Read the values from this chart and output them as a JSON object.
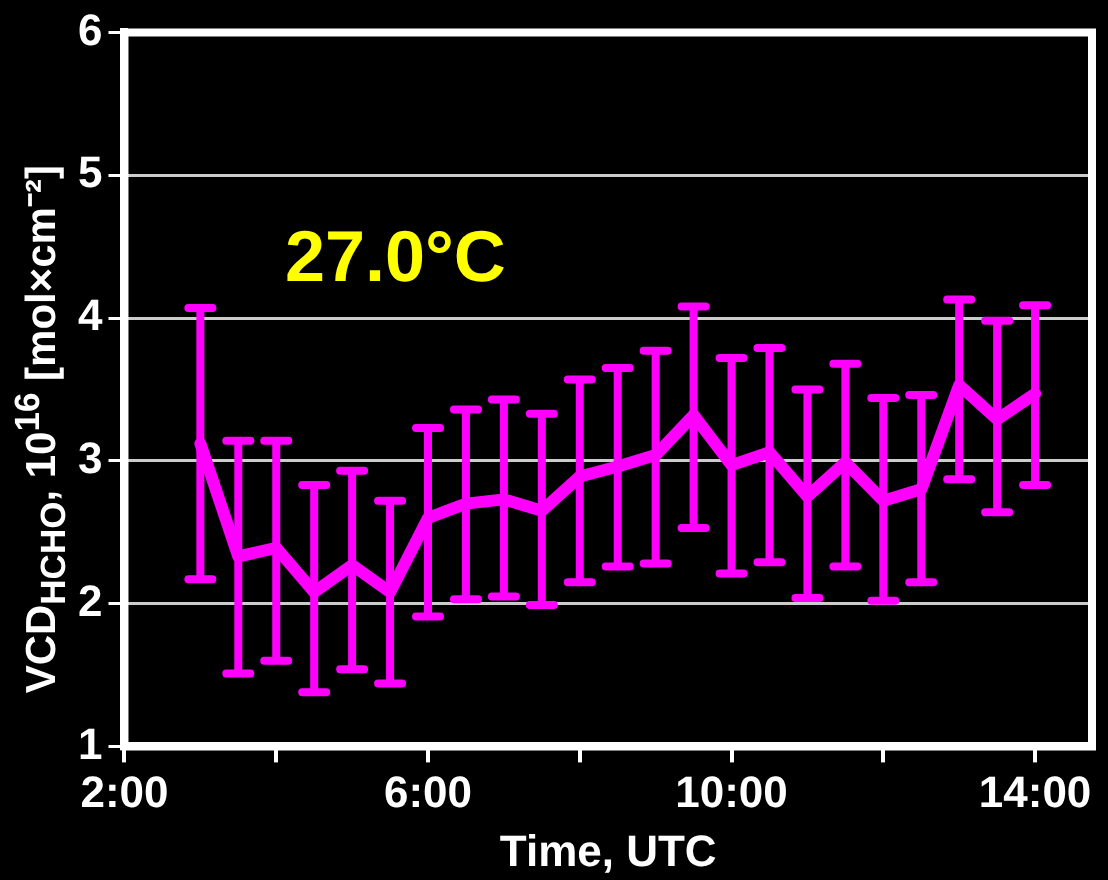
{
  "chart_data": {
    "type": "line",
    "xlabel": "Time, UTC",
    "ylabel": "VCD$_{HCHO}$, 10$^{16}$ [mol×cm⁻²]",
    "annotations": [
      "27.0°C"
    ],
    "x": [
      3.0,
      3.5,
      4.0,
      4.5,
      5.0,
      5.5,
      6.0,
      6.5,
      7.0,
      7.5,
      8.0,
      8.5,
      9.0,
      9.5,
      10.0,
      10.5,
      11.0,
      11.5,
      12.0,
      12.5,
      13.0,
      13.5,
      14.0
    ],
    "series": [
      {
        "color": "#ff00ff",
        "values": [
          3.12,
          2.33,
          2.39,
          2.08,
          2.27,
          2.08,
          2.6,
          2.7,
          2.73,
          2.65,
          2.89,
          2.96,
          3.04,
          3.32,
          2.97,
          3.06,
          2.75,
          2.99,
          2.72,
          2.8,
          3.53,
          3.29,
          3.47
        ],
        "errors": [
          [
            2.17,
            4.07
          ],
          [
            1.51,
            3.14
          ],
          [
            1.6,
            3.14
          ],
          [
            1.38,
            2.83
          ],
          [
            1.54,
            2.93
          ],
          [
            1.44,
            2.72
          ],
          [
            1.91,
            3.23
          ],
          [
            2.03,
            3.36
          ],
          [
            2.05,
            3.43
          ],
          [
            1.99,
            3.33
          ],
          [
            2.15,
            3.57
          ],
          [
            2.26,
            3.65
          ],
          [
            2.28,
            3.77
          ],
          [
            2.53,
            4.08
          ],
          [
            2.21,
            3.72
          ],
          [
            2.29,
            3.79
          ],
          [
            2.04,
            3.5
          ],
          [
            2.26,
            3.68
          ],
          [
            2.02,
            3.44
          ],
          [
            2.15,
            3.46
          ],
          [
            2.87,
            4.13
          ],
          [
            2.64,
            3.98
          ],
          [
            2.83,
            4.09
          ]
        ]
      }
    ],
    "xlim": [
      2,
      14.75
    ],
    "xticks": [
      {
        "value": 2,
        "label": "2:00"
      },
      {
        "value": 4,
        "label": null
      },
      {
        "value": 6,
        "label": "6:00"
      },
      {
        "value": 8,
        "label": null
      },
      {
        "value": 10,
        "label": "10:00"
      },
      {
        "value": 12,
        "label": null
      },
      {
        "value": 14,
        "label": "14:00"
      }
    ],
    "ylim": [
      1,
      6
    ],
    "yticks": [
      1,
      2,
      3,
      4,
      5,
      6
    ],
    "grid": "y",
    "legend": false
  }
}
